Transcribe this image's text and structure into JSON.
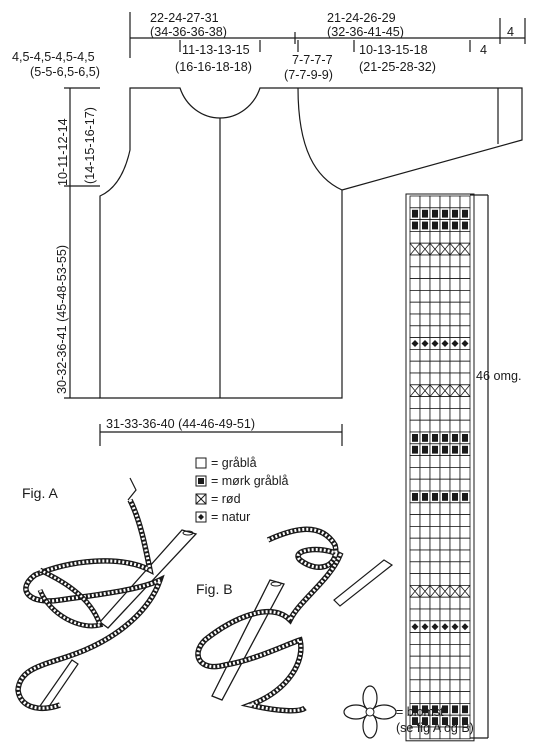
{
  "measurements": {
    "shoulder_width": "22-24-27-31",
    "shoulder_width_b": "(34-36-36-38)",
    "sleeve_length": "21-24-26-29",
    "sleeve_length_b": "(32-36-41-45)",
    "cuff": "4",
    "shoulder_left": "4,5-4,5-4,5-4,5",
    "shoulder_left_b": "(5-5-6,5-6,5)",
    "neck": "11-13-13-15",
    "neck_b": "(16-16-18-18)",
    "upper_arm": "7-7-7-7",
    "upper_arm_b": "(7-7-9-9)",
    "sleeve_mid": "10-13-15-18",
    "sleeve_mid_b": "(21-25-28-32)",
    "sleeve_cuff": "4",
    "armhole": "10-11-12-14",
    "armhole_b": "(14-15-16-17)",
    "body_length": "30-32-36-41  (45-48-53-55)",
    "width": "31-33-36-40  (44-46-49-51)",
    "rounds": "46 omg."
  },
  "legend": [
    {
      "symbol": "square-empty",
      "label": "= gråblå"
    },
    {
      "symbol": "square-dark",
      "label": "= mørk gråblå"
    },
    {
      "symbol": "square-cross",
      "label": "= rød"
    },
    {
      "symbol": "square-diamond",
      "label": "= natur"
    }
  ],
  "flower_note": {
    "line1": "= blomst",
    "line2": "(se fig A og B)"
  },
  "figures": {
    "a": "Fig. A",
    "b": "Fig. B"
  },
  "chart_grid": {
    "columns": 6,
    "rows": [
      "E",
      "D",
      "D",
      "E",
      "X",
      "E",
      "E",
      "E",
      "E",
      "E",
      "E",
      "E",
      "I",
      "E",
      "E",
      "E",
      "X",
      "E",
      "E",
      "E",
      "D",
      "D",
      "E",
      "E",
      "E",
      "D",
      "E",
      "E",
      "E",
      "E",
      "E",
      "E",
      "E",
      "X",
      "E",
      "E",
      "I",
      "E",
      "E",
      "E",
      "E",
      "E",
      "E",
      "D",
      "D",
      "E"
    ]
  }
}
